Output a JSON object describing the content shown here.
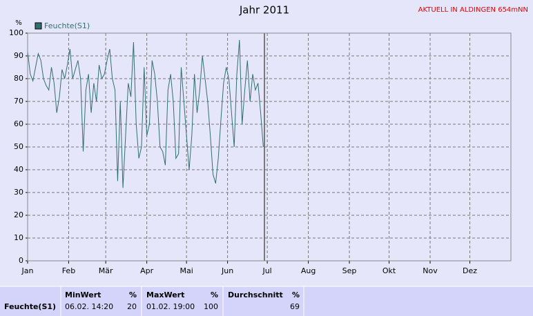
{
  "chart_data": {
    "type": "line",
    "title": "Jahr 2011",
    "subtitle": "AKTUELL IN ALDINGEN 654mNN",
    "y_label": "%",
    "x": [
      0,
      2,
      4,
      6,
      8,
      10,
      12,
      14,
      16,
      18,
      20,
      22,
      24,
      26,
      28,
      30,
      32,
      34,
      36,
      38,
      40,
      42,
      44,
      46,
      48,
      50,
      52,
      54,
      56,
      58,
      60,
      62,
      64,
      66,
      68,
      70,
      72,
      74,
      76,
      78,
      80,
      82,
      84,
      86,
      88,
      90,
      92,
      94,
      96,
      98,
      100,
      102,
      104,
      106,
      108,
      110,
      112,
      114,
      116,
      118,
      120,
      122,
      124,
      126,
      128,
      130,
      132,
      134,
      136,
      138,
      140,
      142,
      144,
      146,
      148,
      150,
      152,
      154,
      156,
      158,
      160,
      162,
      164,
      166,
      168,
      170,
      172,
      174,
      176,
      178
    ],
    "series": [
      {
        "name": "Feuchte(S1)",
        "color": "#2f6f6f",
        "values": [
          92,
          82,
          79,
          85,
          91,
          88,
          80,
          77,
          75,
          85,
          78,
          65,
          72,
          84,
          80,
          86,
          93,
          80,
          84,
          88,
          80,
          48,
          75,
          82,
          65,
          78,
          70,
          86,
          80,
          82,
          88,
          93,
          80,
          75,
          35,
          70,
          32,
          55,
          78,
          72,
          96,
          60,
          45,
          50,
          85,
          55,
          60,
          88,
          82,
          70,
          50,
          48,
          42,
          75,
          82,
          70,
          45,
          47,
          85,
          70,
          55,
          40,
          55,
          82,
          65,
          75,
          90,
          80,
          70,
          55,
          38,
          34,
          45,
          62,
          78,
          85,
          80,
          65,
          50,
          82,
          97,
          60,
          75,
          88,
          70,
          82,
          75,
          78,
          65,
          50
        ]
      }
    ],
    "xlim": [
      0,
      365
    ],
    "xticks": [
      {
        "value": 0,
        "label": "Jan"
      },
      {
        "value": 31,
        "label": "Feb"
      },
      {
        "value": 59,
        "label": "Mär"
      },
      {
        "value": 90,
        "label": "Apr"
      },
      {
        "value": 120,
        "label": "Mai"
      },
      {
        "value": 151,
        "label": "Jun"
      },
      {
        "value": 181,
        "label": "Jul"
      },
      {
        "value": 212,
        "label": "Aug"
      },
      {
        "value": 243,
        "label": "Sep"
      },
      {
        "value": 273,
        "label": "Okt"
      },
      {
        "value": 304,
        "label": "Nov"
      },
      {
        "value": 334,
        "label": "Dez"
      }
    ],
    "ylim": [
      0,
      100
    ],
    "yticks": [
      0,
      10,
      20,
      30,
      40,
      50,
      60,
      70,
      80,
      90,
      100
    ],
    "grid": true
  },
  "table": {
    "headers": [
      [
        "MinWert",
        "%"
      ],
      [
        "MaxWert",
        "%"
      ],
      [
        "Durchschnitt",
        "%"
      ]
    ],
    "rows": [
      [
        "Feuchte(S1)",
        "06.02. 14:20",
        "20",
        "01.02. 19:00",
        "100",
        "69"
      ]
    ]
  }
}
